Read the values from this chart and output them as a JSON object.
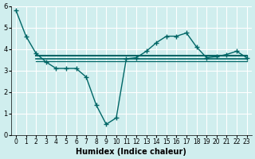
{
  "x_main": [
    0,
    1,
    2,
    3,
    4,
    5,
    6,
    7,
    8,
    9,
    10,
    11,
    12,
    13,
    14,
    15,
    16,
    17,
    18,
    19,
    20,
    21,
    22,
    23
  ],
  "y_main": [
    5.8,
    4.6,
    3.8,
    3.4,
    3.1,
    3.1,
    3.1,
    2.7,
    1.4,
    0.5,
    0.8,
    3.55,
    3.6,
    3.9,
    4.3,
    4.6,
    4.6,
    4.75,
    4.1,
    3.6,
    3.65,
    3.75,
    3.9,
    3.6
  ],
  "y_flat1": 3.7,
  "y_flat2": 3.55,
  "y_flat3": 3.45,
  "flat_x_start": 2,
  "flat_x_end": 23,
  "bg_color": "#d0eeee",
  "grid_color": "#ffffff",
  "line_color": "#006666",
  "xlabel": "Humidex (Indice chaleur)",
  "xlim": [
    -0.5,
    23.5
  ],
  "ylim": [
    0,
    6
  ],
  "yticks": [
    0,
    1,
    2,
    3,
    4,
    5,
    6
  ],
  "xticks": [
    0,
    1,
    2,
    3,
    4,
    5,
    6,
    7,
    8,
    9,
    10,
    11,
    12,
    13,
    14,
    15,
    16,
    17,
    18,
    19,
    20,
    21,
    22,
    23
  ]
}
